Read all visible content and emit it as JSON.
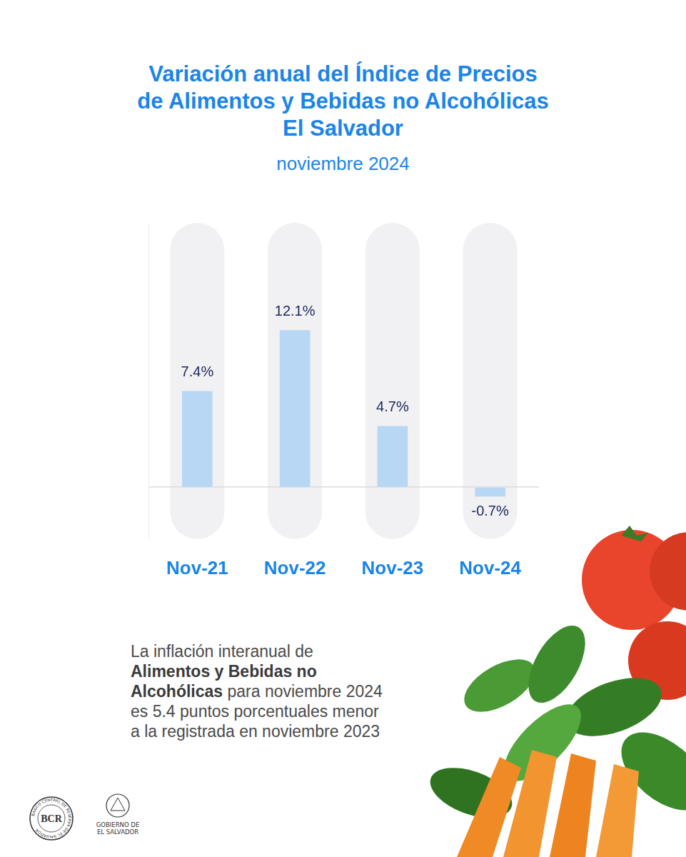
{
  "title": [
    "Variación anual del Índice de Precios",
    "de Alimentos y Bebidas no Alcohólicas",
    "El Salvador"
  ],
  "subtitle": "noviembre 2024",
  "chart_data": {
    "type": "bar",
    "categories": [
      "Nov-21",
      "Nov-22",
      "Nov-23",
      "Nov-24"
    ],
    "values": [
      7.4,
      12.1,
      4.7,
      -0.7
    ],
    "value_labels": [
      "7.4%",
      "12.1%",
      "4.7%",
      "-0.7%"
    ],
    "data_labels": true,
    "color": "#b7d7f4",
    "ylim": [
      -4,
      20.4
    ],
    "yticks": [
      0
    ],
    "grid": true,
    "tick_labels": "x"
  },
  "note": [
    [
      {
        "text": "La inflación interanual de"
      }
    ],
    [
      {
        "text": "Alimentos y Bebidas no",
        "bold": true
      }
    ],
    [
      {
        "text": "Alcohólicas",
        "bold": true
      },
      {
        "text": " para noviembre 2024"
      }
    ],
    [
      {
        "text": "es 5.4 puntos porcentuales menor"
      }
    ],
    [
      {
        "text": "a la registrada en noviembre 2023"
      }
    ]
  ],
  "logos": {
    "bcr": {
      "initials": "BCR",
      "ring": "BANCO CENTRAL DE RESERVA DE EL SALVADOR"
    },
    "government": "GOBIERNO DE EL SALVADOR"
  }
}
